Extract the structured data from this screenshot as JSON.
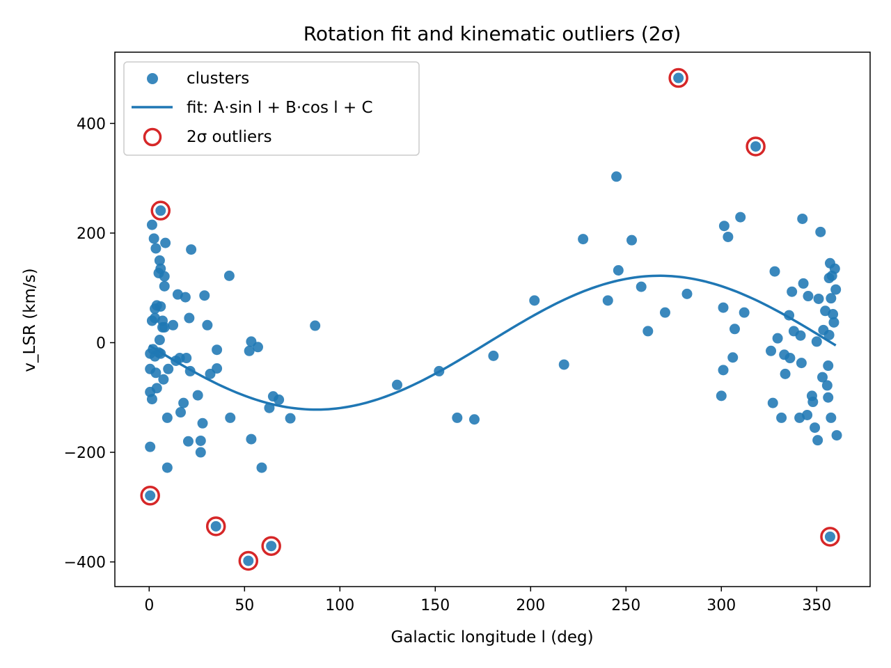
{
  "chart_data": {
    "type": "scatter",
    "title": "Rotation fit and kinematic outliers (2σ)",
    "xlabel": "Galactic longitude l (deg)",
    "ylabel": "v_LSR (km/s)",
    "xlim": [
      -18,
      378
    ],
    "ylim": [
      -445,
      530
    ],
    "xticks": [
      0,
      50,
      100,
      150,
      200,
      250,
      300,
      350
    ],
    "yticks": [
      -400,
      -200,
      0,
      200,
      400
    ],
    "xtick_labels": [
      "0",
      "50",
      "100",
      "150",
      "200",
      "250",
      "300",
      "350"
    ],
    "ytick_labels": [
      "−400",
      "−200",
      "0",
      "200",
      "400"
    ],
    "grid": false,
    "legend": {
      "position": "top-left",
      "entries": [
        "clusters",
        "fit: A·sin l + B·cos l + C",
        "2σ outliers"
      ]
    },
    "colors": {
      "points": "#1f77b4",
      "fit": "#1f77b4",
      "outliers": "#d62728"
    },
    "fit": {
      "A": -122,
      "B": -5,
      "C": 0,
      "x_range": [
        0,
        360
      ]
    },
    "series": [
      {
        "name": "clusters",
        "points": [
          [
            0.5,
            -20
          ],
          [
            0.5,
            -48
          ],
          [
            0.5,
            -90
          ],
          [
            0.5,
            -190
          ],
          [
            1.5,
            215
          ],
          [
            1.5,
            40
          ],
          [
            1.5,
            -103
          ],
          [
            2,
            -12
          ],
          [
            2.5,
            190
          ],
          [
            3,
            62
          ],
          [
            3,
            45
          ],
          [
            3,
            -25
          ],
          [
            3.5,
            -55
          ],
          [
            3.5,
            172
          ],
          [
            4,
            68
          ],
          [
            4,
            -83
          ],
          [
            5,
            -18
          ],
          [
            5,
            127
          ],
          [
            5.5,
            150
          ],
          [
            5.5,
            5
          ],
          [
            6,
            135
          ],
          [
            6,
            66
          ],
          [
            6,
            -20
          ],
          [
            7,
            40
          ],
          [
            7,
            28
          ],
          [
            7.5,
            -67
          ],
          [
            8,
            121
          ],
          [
            8,
            103
          ],
          [
            8,
            28
          ],
          [
            8.5,
            182
          ],
          [
            9.5,
            -137
          ],
          [
            9.5,
            -228
          ],
          [
            10,
            -48
          ],
          [
            12.5,
            32
          ],
          [
            14,
            -33
          ],
          [
            15,
            88
          ],
          [
            16,
            -28
          ],
          [
            16.5,
            -127
          ],
          [
            18,
            -110
          ],
          [
            19,
            83
          ],
          [
            19.5,
            -28
          ],
          [
            20.5,
            -180
          ],
          [
            21,
            45
          ],
          [
            21.5,
            -52
          ],
          [
            22,
            170
          ],
          [
            25.5,
            -96
          ],
          [
            27,
            -179
          ],
          [
            27,
            -200
          ],
          [
            28,
            -147
          ],
          [
            29,
            86
          ],
          [
            30.5,
            32
          ],
          [
            32,
            -57
          ],
          [
            35.5,
            -13
          ],
          [
            35.5,
            -47
          ],
          [
            42,
            122
          ],
          [
            42.5,
            -137
          ],
          [
            52.5,
            -15
          ],
          [
            53.5,
            2
          ],
          [
            53.5,
            -176
          ],
          [
            57,
            -8
          ],
          [
            59,
            -228
          ],
          [
            63,
            -119
          ],
          [
            65,
            -98
          ],
          [
            68,
            -104
          ],
          [
            74,
            -138
          ],
          [
            87,
            31
          ],
          [
            130,
            -77
          ],
          [
            152,
            -52
          ],
          [
            161.5,
            -137
          ],
          [
            170.5,
            -140
          ],
          [
            180.5,
            -24
          ],
          [
            202,
            77
          ],
          [
            217.5,
            -40
          ],
          [
            227.5,
            189
          ],
          [
            240.5,
            77
          ],
          [
            245,
            303
          ],
          [
            246,
            132
          ],
          [
            253,
            187
          ],
          [
            258,
            102
          ],
          [
            261.5,
            21
          ],
          [
            270.5,
            55
          ],
          [
            282,
            89
          ],
          [
            300,
            -97
          ],
          [
            301,
            64
          ],
          [
            301,
            -50
          ],
          [
            301.5,
            213
          ],
          [
            303.5,
            193
          ],
          [
            306,
            -27
          ],
          [
            307,
            25
          ],
          [
            310,
            229
          ],
          [
            312,
            55
          ],
          [
            326,
            -15
          ],
          [
            327,
            -110
          ],
          [
            328,
            130
          ],
          [
            329.5,
            8
          ],
          [
            331.5,
            -137
          ],
          [
            333,
            -22
          ],
          [
            333.5,
            -57
          ],
          [
            335.5,
            50
          ],
          [
            336,
            -28
          ],
          [
            337,
            93
          ],
          [
            338,
            21
          ],
          [
            341,
            -137
          ],
          [
            341.5,
            13
          ],
          [
            342,
            -37
          ],
          [
            342.5,
            226
          ],
          [
            343,
            108
          ],
          [
            345,
            -132
          ],
          [
            345.5,
            85
          ],
          [
            347.5,
            -97
          ],
          [
            348,
            -108
          ],
          [
            349,
            -155
          ],
          [
            350,
            2
          ],
          [
            350.5,
            -178
          ],
          [
            351,
            80
          ],
          [
            352,
            202
          ],
          [
            353,
            -63
          ],
          [
            353.5,
            23
          ],
          [
            354.5,
            58
          ],
          [
            355.5,
            -78
          ],
          [
            356,
            -100
          ],
          [
            356,
            -42
          ],
          [
            356.5,
            118
          ],
          [
            357,
            145
          ],
          [
            357.5,
            81
          ],
          [
            357.5,
            -137
          ],
          [
            358,
            122
          ],
          [
            358.5,
            52
          ],
          [
            359,
            37
          ],
          [
            359.5,
            135
          ],
          [
            360,
            97
          ],
          [
            360.5,
            -169
          ],
          [
            356.5,
            14
          ]
        ]
      },
      {
        "name": "2σ outliers",
        "points": [
          [
            0.5,
            -279
          ],
          [
            6,
            241
          ],
          [
            35,
            -335
          ],
          [
            52,
            -398
          ],
          [
            64,
            -371
          ],
          [
            277.5,
            483
          ],
          [
            318,
            358
          ],
          [
            357,
            -354
          ]
        ]
      }
    ]
  }
}
